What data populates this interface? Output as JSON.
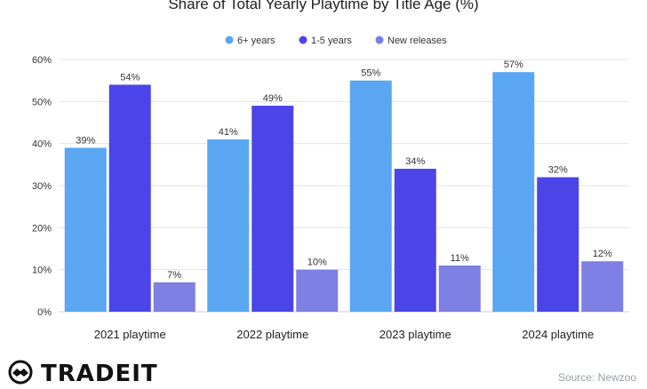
{
  "chart_data": {
    "type": "bar",
    "title": "Share of Total Yearly Playtime by Title Age (%)",
    "categories": [
      "2021 playtime",
      "2022 playtime",
      "2023 playtime",
      "2024 playtime"
    ],
    "series": [
      {
        "name": "6+ years",
        "values": [
          39,
          41,
          55,
          57
        ],
        "color": "#5aa6f2"
      },
      {
        "name": "1-5 years",
        "values": [
          54,
          49,
          34,
          32
        ],
        "color": "#4b45e8"
      },
      {
        "name": "New releases",
        "values": [
          7,
          10,
          11,
          12
        ],
        "color": "#7d7fe3"
      }
    ],
    "value_suffix": "%",
    "y_ticks": [
      "0%",
      "10%",
      "20%",
      "30%",
      "40%",
      "50%",
      "60%"
    ],
    "ylim": [
      0,
      60
    ],
    "grid": true,
    "legend_position": "top-center"
  },
  "footer": {
    "brand": "TRADEIT",
    "source": "Source: Newzoo"
  },
  "icons": {
    "brand_logo": "handshake-icon"
  }
}
